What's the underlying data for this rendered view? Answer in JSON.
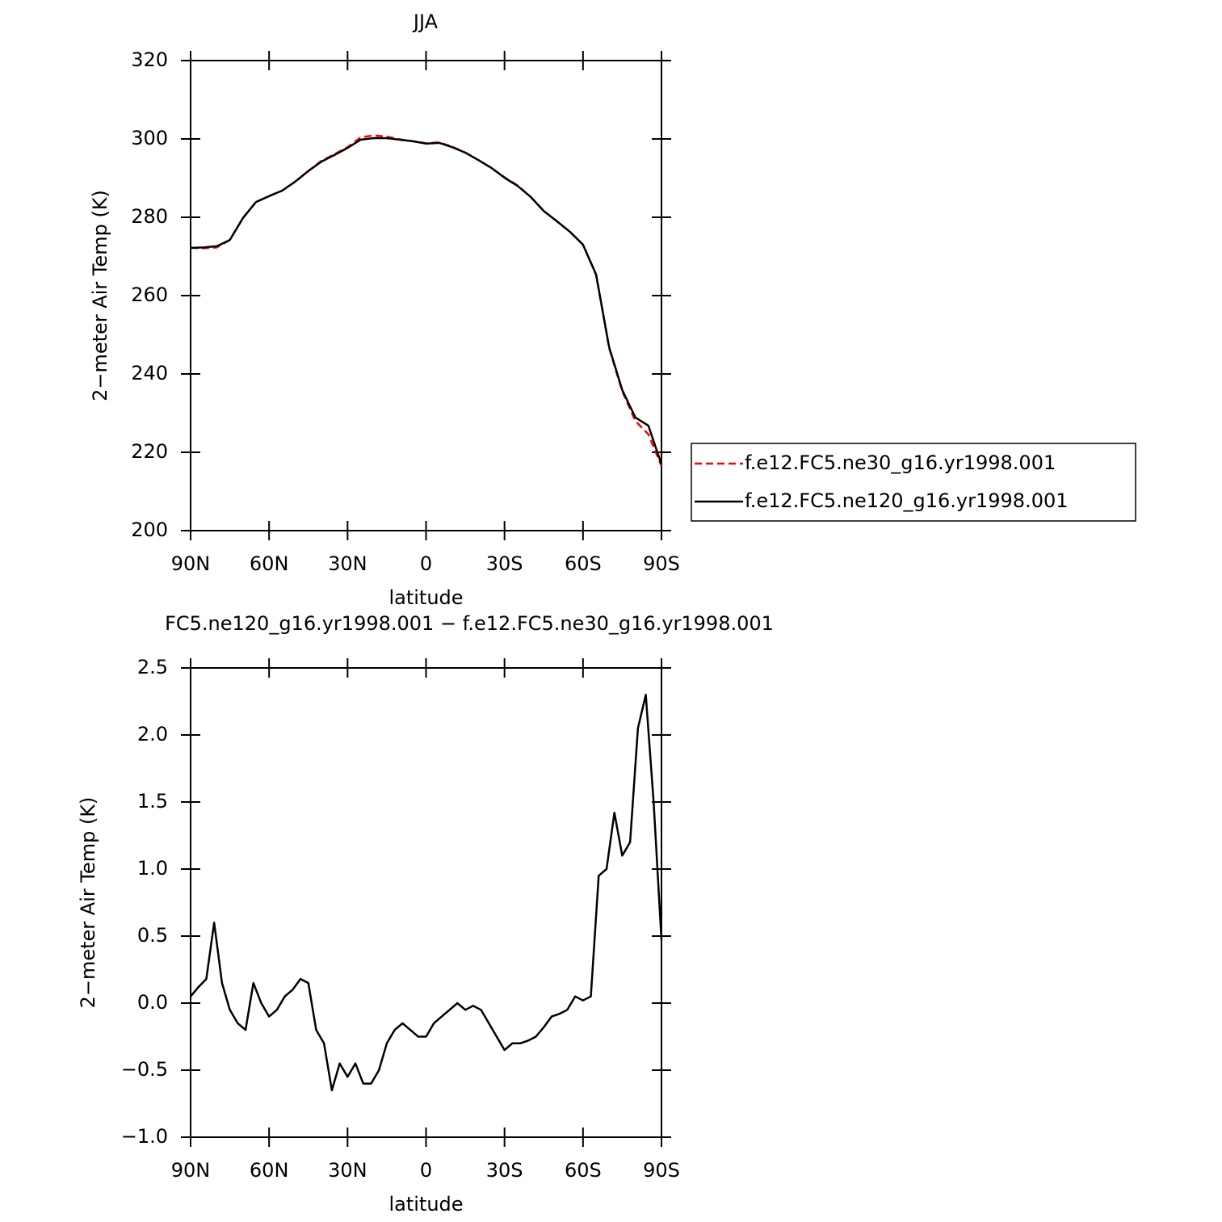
{
  "chart_data": [
    {
      "type": "line",
      "title": "JJA",
      "xlabel": "latitude",
      "ylabel": "2−meter Air Temp (K)",
      "x": [
        90,
        85,
        80,
        75,
        70,
        65,
        60,
        55,
        50,
        45,
        40,
        35,
        30,
        25,
        20,
        15,
        10,
        5,
        0,
        -5,
        -10,
        -15,
        -20,
        -25,
        -30,
        -35,
        -40,
        -45,
        -50,
        -55,
        -60,
        -65,
        -70,
        -75,
        -80,
        -85,
        -90
      ],
      "series": [
        {
          "name": "f.e12.FC5.ne30_g16.yr1998.001",
          "color": "#ff0000",
          "dashed": true,
          "values": [
            272.2,
            272.1,
            272.3,
            274.2,
            279.8,
            283.9,
            285.4,
            286.8,
            289.1,
            291.8,
            294.4,
            296.1,
            297.9,
            300.4,
            300.9,
            300.6,
            299.9,
            299.4,
            298.9,
            299.1,
            298.0,
            296.5,
            294.6,
            292.6,
            290.2,
            288.1,
            285.2,
            281.6,
            279.0,
            276.3,
            273.0,
            265.3,
            246.6,
            235.6,
            228.0,
            224.6,
            216.5
          ]
        },
        {
          "name": "f.e12.FC5.ne120_g16.yr1998.001",
          "color": "#000000",
          "dashed": false,
          "values": [
            272.2,
            272.3,
            272.6,
            274.2,
            279.8,
            283.9,
            285.4,
            286.8,
            289.1,
            291.8,
            294.2,
            295.9,
            297.7,
            299.8,
            300.2,
            300.2,
            299.8,
            299.4,
            298.8,
            299.0,
            297.9,
            296.5,
            294.6,
            292.6,
            290.1,
            288.0,
            285.2,
            281.6,
            279.0,
            276.3,
            273.0,
            265.4,
            246.8,
            235.9,
            228.9,
            226.8,
            216.9
          ]
        }
      ],
      "xlim": [
        90,
        -90
      ],
      "xticks": [
        {
          "value": 90,
          "label": "90N"
        },
        {
          "value": 60,
          "label": "60N"
        },
        {
          "value": 30,
          "label": "30N"
        },
        0,
        {
          "value": -30,
          "label": "30S"
        },
        {
          "value": -60,
          "label": "60S"
        },
        {
          "value": -90,
          "label": "90S"
        }
      ],
      "ylim": [
        200,
        320
      ],
      "yticks": [
        200,
        220,
        240,
        260,
        280,
        300,
        320
      ],
      "legend": "right"
    },
    {
      "type": "line",
      "title": "FC5.ne120_g16.yr1998.001 − f.e12.FC5.ne30_g16.yr1998.001",
      "xlabel": "latitude",
      "ylabel": "2−meter Air Temp (K)",
      "x": [
        90,
        87,
        84,
        81,
        78,
        75,
        72,
        69,
        66,
        63,
        60,
        57,
        54,
        51,
        48,
        45,
        42,
        39,
        36,
        33,
        30,
        27,
        24,
        21,
        18,
        15,
        12,
        9,
        6,
        3,
        0,
        -3,
        -6,
        -9,
        -12,
        -15,
        -18,
        -21,
        -24,
        -27,
        -30,
        -33,
        -36,
        -39,
        -42,
        -45,
        -48,
        -51,
        -54,
        -57,
        -60,
        -63,
        -66,
        -69,
        -72,
        -75,
        -78,
        -81,
        -84,
        -87,
        -90
      ],
      "series": [
        {
          "color": "#000000",
          "dashed": false,
          "values": [
            0.05,
            0.12,
            0.18,
            0.6,
            0.15,
            -0.05,
            -0.15,
            -0.2,
            0.15,
            0.0,
            -0.1,
            -0.05,
            0.05,
            0.1,
            0.18,
            0.15,
            -0.2,
            -0.3,
            -0.65,
            -0.45,
            -0.55,
            -0.45,
            -0.6,
            -0.6,
            -0.5,
            -0.3,
            -0.2,
            -0.15,
            -0.2,
            -0.25,
            -0.25,
            -0.15,
            -0.1,
            -0.05,
            0.0,
            -0.05,
            -0.02,
            -0.05,
            -0.15,
            -0.25,
            -0.35,
            -0.3,
            -0.3,
            -0.28,
            -0.25,
            -0.18,
            -0.1,
            -0.08,
            -0.05,
            0.05,
            0.02,
            0.05,
            0.95,
            1.0,
            1.42,
            1.1,
            1.2,
            2.05,
            2.3,
            1.5,
            0.47
          ]
        }
      ],
      "xlim": [
        90,
        -90
      ],
      "xticks": [
        {
          "value": 90,
          "label": "90N"
        },
        {
          "value": 60,
          "label": "60N"
        },
        {
          "value": 30,
          "label": "30N"
        },
        0,
        {
          "value": -30,
          "label": "30S"
        },
        {
          "value": -60,
          "label": "60S"
        },
        {
          "value": -90,
          "label": "90S"
        }
      ],
      "ylim": [
        -1.0,
        2.5
      ],
      "yticks": [
        {
          "value": -1.0,
          "label": "−1.0"
        },
        {
          "value": -0.5,
          "label": "−0.5"
        },
        {
          "value": 0.0,
          "label": "0.0"
        },
        {
          "value": 0.5,
          "label": "0.5"
        },
        {
          "value": 1.0,
          "label": "1.0"
        },
        {
          "value": 1.5,
          "label": "1.5"
        },
        {
          "value": 2.0,
          "label": "2.0"
        },
        {
          "value": 2.5,
          "label": "2.5"
        }
      ]
    }
  ]
}
